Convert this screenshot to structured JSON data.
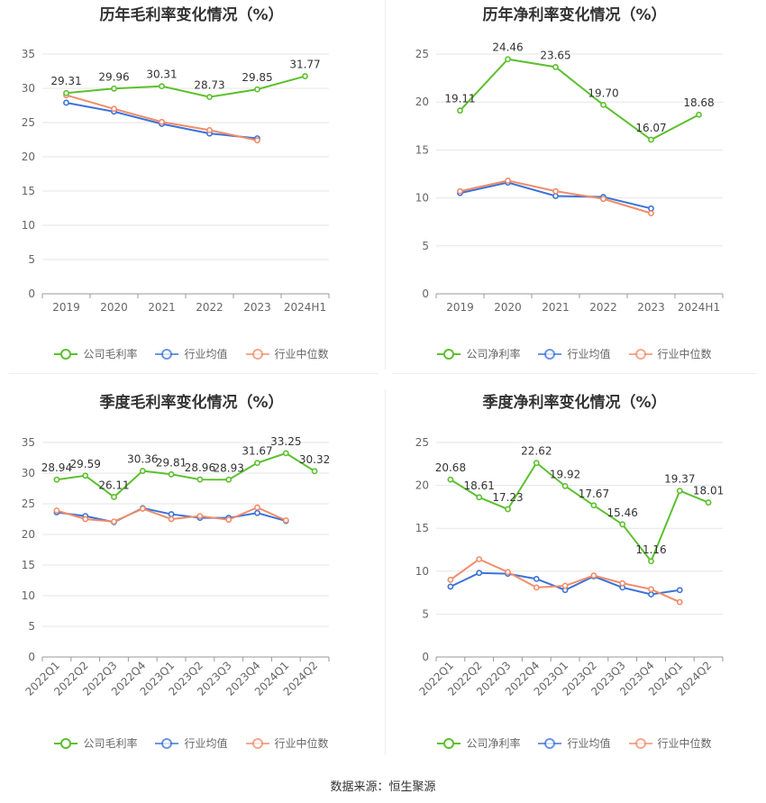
{
  "source": "数据来源：恒生聚源",
  "colors": {
    "company": "#5cc02f",
    "avg": "#3b73d9",
    "median": "#f08c6a",
    "grid": "#e6e6e6",
    "axis": "#999999"
  },
  "chart_data": [
    {
      "type": "line",
      "title": "历年毛利率变化情况（%）",
      "categories": [
        "2019",
        "2020",
        "2021",
        "2022",
        "2023",
        "2024H1"
      ],
      "ylim": [
        0,
        35
      ],
      "yticks": [
        0,
        5,
        10,
        15,
        20,
        25,
        30,
        35
      ],
      "legend": [
        "公司毛利率",
        "行业均值",
        "行业中位数"
      ],
      "legend_position": "bottom",
      "series": [
        {
          "name": "公司毛利率",
          "values": [
            29.31,
            29.96,
            30.31,
            28.73,
            29.85,
            31.77
          ],
          "labels": [
            "29.31",
            "29.96",
            "30.31",
            "28.73",
            "29.85",
            "31.77"
          ]
        },
        {
          "name": "行业均值",
          "values": [
            27.9,
            26.6,
            24.8,
            23.4,
            22.7,
            null
          ]
        },
        {
          "name": "行业中位数",
          "values": [
            29.0,
            27.0,
            25.1,
            23.9,
            22.4,
            null
          ]
        }
      ]
    },
    {
      "type": "line",
      "title": "历年净利率变化情况（%）",
      "categories": [
        "2019",
        "2020",
        "2021",
        "2022",
        "2023",
        "2024H1"
      ],
      "ylim": [
        0,
        25
      ],
      "yticks": [
        0,
        5,
        10,
        15,
        20,
        25
      ],
      "legend": [
        "公司净利率",
        "行业均值",
        "行业中位数"
      ],
      "legend_position": "bottom",
      "series": [
        {
          "name": "公司净利率",
          "values": [
            19.11,
            24.46,
            23.65,
            19.7,
            16.07,
            18.68
          ],
          "labels": [
            "19.11",
            "24.46",
            "23.65",
            "19.70",
            "16.07",
            "18.68"
          ]
        },
        {
          "name": "行业均值",
          "values": [
            10.5,
            11.6,
            10.2,
            10.1,
            8.9,
            null
          ]
        },
        {
          "name": "行业中位数",
          "values": [
            10.7,
            11.8,
            10.7,
            9.9,
            8.4,
            null
          ]
        }
      ]
    },
    {
      "type": "line",
      "title": "季度毛利率变化情况（%）",
      "categories": [
        "2022Q1",
        "2022Q2",
        "2022Q3",
        "2022Q4",
        "2023Q1",
        "2023Q2",
        "2023Q3",
        "2023Q4",
        "2024Q1",
        "2024Q2"
      ],
      "ylim": [
        0,
        35
      ],
      "yticks": [
        0,
        5,
        10,
        15,
        20,
        25,
        30,
        35
      ],
      "legend": [
        "公司毛利率",
        "行业均值",
        "行业中位数"
      ],
      "legend_position": "bottom",
      "series": [
        {
          "name": "公司毛利率",
          "values": [
            28.94,
            29.59,
            26.11,
            30.36,
            29.81,
            28.96,
            28.93,
            31.67,
            33.25,
            30.32
          ],
          "labels": [
            "28.94",
            "29.59",
            "26.11",
            "30.36",
            "29.81",
            "28.96",
            "28.93",
            "31.67",
            "33.25",
            "30.32"
          ]
        },
        {
          "name": "行业均值",
          "values": [
            23.6,
            23.0,
            22.0,
            24.3,
            23.3,
            22.7,
            22.7,
            23.5,
            22.2,
            null
          ]
        },
        {
          "name": "行业中位数",
          "values": [
            23.9,
            22.5,
            22.1,
            24.2,
            22.5,
            23.0,
            22.4,
            24.4,
            22.3,
            null
          ]
        }
      ]
    },
    {
      "type": "line",
      "title": "季度净利率变化情况（%）",
      "categories": [
        "2022Q1",
        "2022Q2",
        "2022Q3",
        "2022Q4",
        "2023Q1",
        "2023Q2",
        "2023Q3",
        "2023Q4",
        "2024Q1",
        "2024Q2"
      ],
      "ylim": [
        0,
        25
      ],
      "yticks": [
        0,
        5,
        10,
        15,
        20,
        25
      ],
      "legend": [
        "公司净利率",
        "行业均值",
        "行业中位数"
      ],
      "legend_position": "bottom",
      "series": [
        {
          "name": "公司净利率",
          "values": [
            20.68,
            18.61,
            17.23,
            22.62,
            19.92,
            17.67,
            15.46,
            11.16,
            19.37,
            18.01
          ],
          "labels": [
            "20.68",
            "18.61",
            "17.23",
            "22.62",
            "19.92",
            "17.67",
            "15.46",
            "11.16",
            "19.37",
            "18.01"
          ]
        },
        {
          "name": "行业均值",
          "values": [
            8.2,
            9.8,
            9.7,
            9.1,
            7.8,
            9.4,
            8.1,
            7.3,
            7.8,
            null
          ]
        },
        {
          "name": "行业中位数",
          "values": [
            9.0,
            11.4,
            9.9,
            8.1,
            8.3,
            9.5,
            8.6,
            7.9,
            6.4,
            null
          ]
        }
      ]
    }
  ]
}
